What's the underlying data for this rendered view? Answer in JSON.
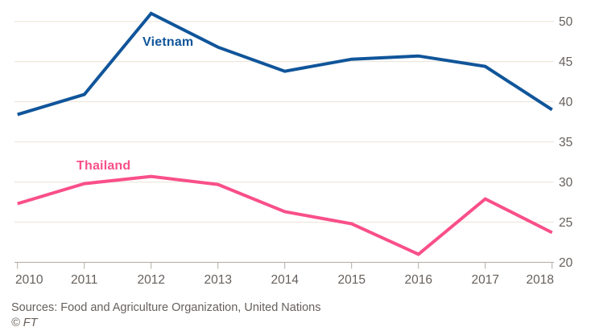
{
  "chart_data": {
    "type": "line",
    "categories": [
      "2010",
      "2011",
      "2012",
      "2013",
      "2014",
      "2015",
      "2016",
      "2017",
      "2018"
    ],
    "series": [
      {
        "name": "Vietnam",
        "color": "#10559a",
        "values": [
          38.4,
          40.9,
          51.0,
          46.8,
          43.8,
          45.3,
          45.7,
          44.4,
          39.0
        ]
      },
      {
        "name": "Thailand",
        "color": "#f94f8a",
        "values": [
          27.3,
          29.8,
          30.7,
          29.7,
          26.3,
          24.8,
          21.0,
          27.9,
          23.7
        ]
      }
    ],
    "title": "",
    "xlabel": "",
    "ylabel": "",
    "ylim": [
      20,
      50
    ],
    "yticks": [
      20,
      25,
      30,
      35,
      40,
      45,
      50
    ],
    "y_axis_side": "right",
    "grid": true,
    "legend_position": "inline-labels"
  },
  "footer": {
    "sources": "Sources: Food and Agriculture Organization, United Nations",
    "credit": "© FT"
  },
  "colors": {
    "gridline": "#ece3d6",
    "axis": "#b3aba1",
    "tick_label": "#66605c",
    "background": "#ffffff"
  }
}
